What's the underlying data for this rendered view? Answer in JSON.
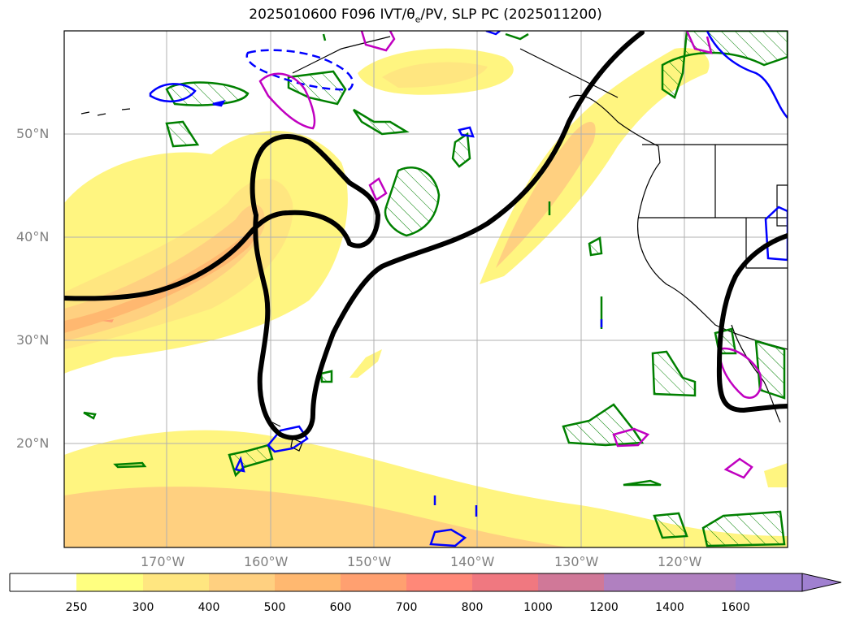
{
  "title": {
    "prefix": "2025010600 F096 IVT/",
    "theta": "θ",
    "theta_sub": "e",
    "suffix": "/PV, SLP PC (2025011200)"
  },
  "lat_labels": [
    "50°N",
    "40°N",
    "30°N",
    "20°N"
  ],
  "lon_labels": [
    "170°W",
    "160°W",
    "150°W",
    "140°W",
    "130°W",
    "120°W"
  ],
  "colorbar": {
    "ticks": [
      "250",
      "300",
      "400",
      "500",
      "600",
      "700",
      "800",
      "1000",
      "1200",
      "1400",
      "1600"
    ],
    "colors": [
      "#ffffff",
      "#ffff80",
      "#ffe680",
      "#ffd080",
      "#ffb870",
      "#ffa070",
      "#ff8878",
      "#f07880",
      "#d07898",
      "#b080c0",
      "#a080d0"
    ]
  },
  "colors": {
    "ivt_light": "#fff580",
    "ivt_mid": "#ffd080",
    "ivt_high": "#ffa070",
    "slp_contour": "#000000",
    "theta_e": "#008000",
    "pv_blue": "#0000ff",
    "pv_magenta": "#c000c0",
    "grid": "#b0b0b0",
    "axis_labels": "#808080"
  },
  "icons": {
    "colorbar_arrow": "triangle-right-icon"
  }
}
